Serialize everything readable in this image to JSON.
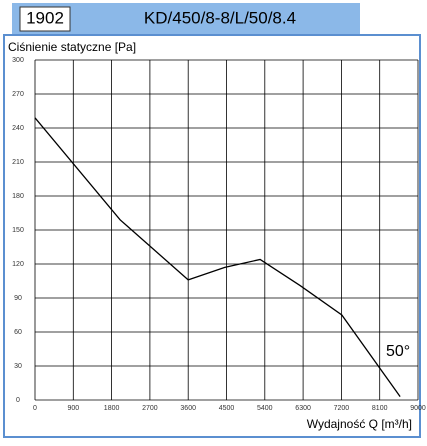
{
  "header": {
    "id": "1902",
    "model": "KD/450/8-8/L/50/8.4"
  },
  "chart_data": {
    "type": "line",
    "ylabel": "Ciśnienie statyczne [Pa]",
    "xlabel": "Wydajność Q [m³/h]",
    "annotation": "50°",
    "xlim": [
      0,
      9000
    ],
    "xticks": [
      0,
      900,
      1800,
      2700,
      3600,
      4500,
      5400,
      6300,
      7200,
      8100,
      9000
    ],
    "ylim": [
      0,
      300
    ],
    "yticks": [
      0,
      30,
      60,
      90,
      120,
      150,
      180,
      210,
      240,
      270,
      300
    ],
    "grid": true,
    "series": [
      {
        "color": "#000000",
        "x": [
          0,
          2000,
          3600,
          4460,
          5290,
          6230,
          7210,
          8580
        ],
        "values": [
          249,
          159,
          106,
          117,
          124,
          101,
          75,
          3
        ]
      }
    ]
  }
}
